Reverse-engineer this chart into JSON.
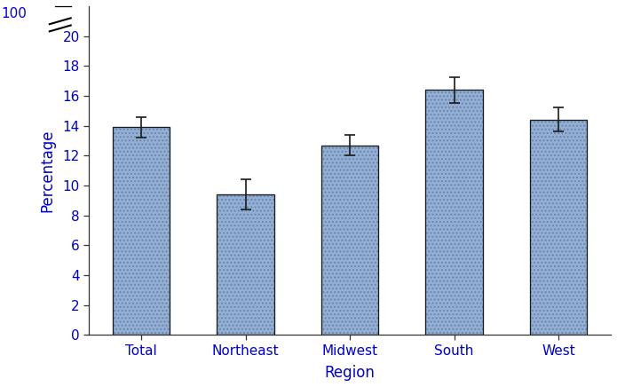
{
  "categories": [
    "Total",
    "Northeast",
    "Midwest",
    "South",
    "West"
  ],
  "values": [
    13.9,
    9.4,
    12.7,
    16.4,
    14.4
  ],
  "errors": [
    0.7,
    1.0,
    0.7,
    0.85,
    0.8
  ],
  "bar_color": "#92afd7",
  "bar_edgecolor": "#1a1a1a",
  "error_color": "#1a1a1a",
  "xlabel": "Region",
  "ylabel": "Percentage",
  "ylim": [
    0,
    22
  ],
  "actual_yticks": [
    0,
    2,
    4,
    6,
    8,
    10,
    12,
    14,
    16,
    18,
    20
  ],
  "bar_width": 0.55,
  "axis_label_fontsize": 12,
  "tick_fontsize": 11,
  "label_color": "#0000cc",
  "spine_color": "#333333",
  "top_label": "100"
}
